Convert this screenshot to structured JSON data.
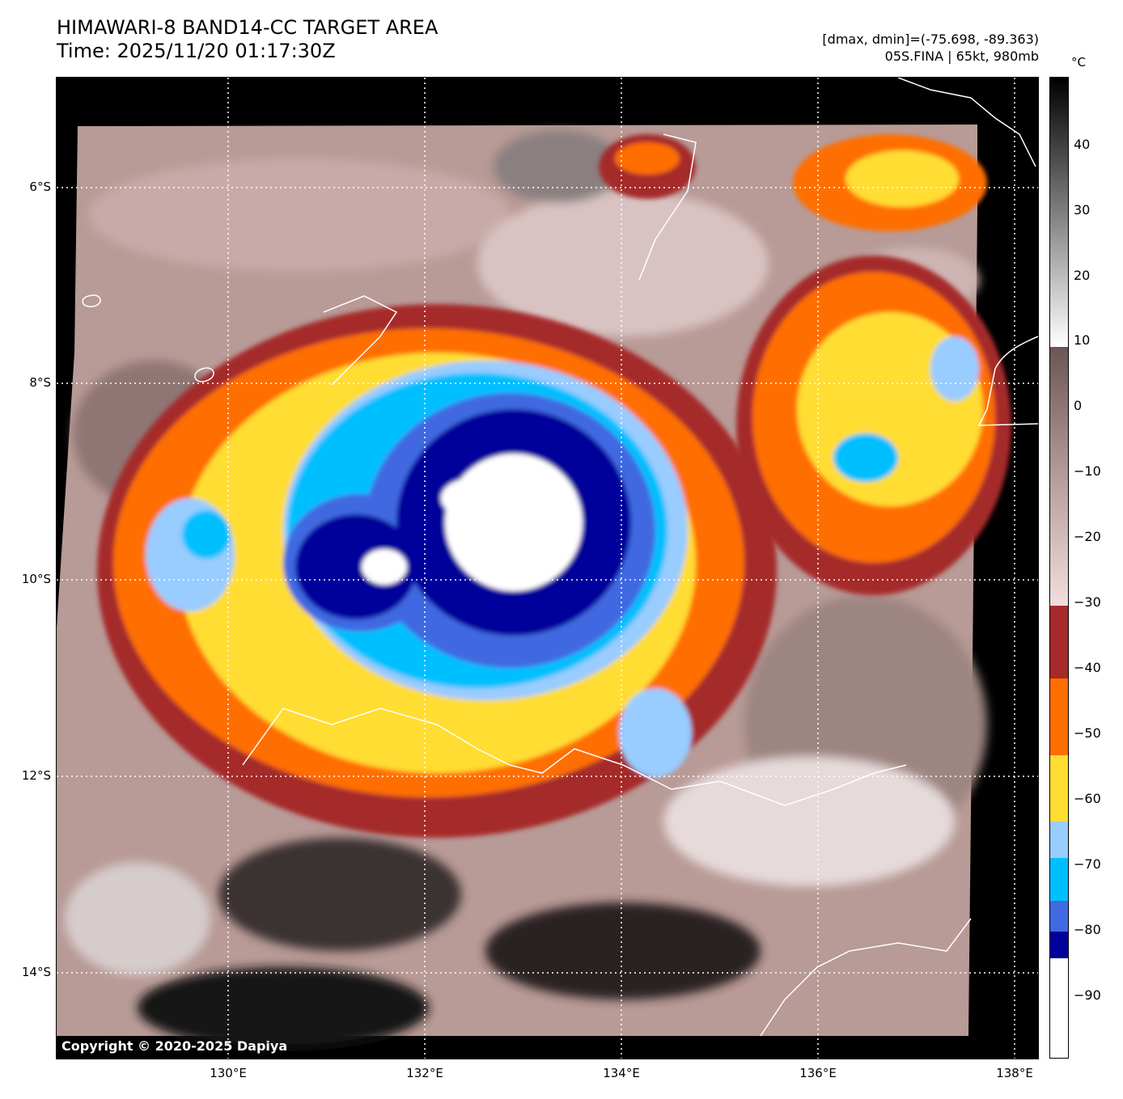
{
  "title": {
    "line1": "HIMAWARI-8 BAND14-CC TARGET AREA",
    "line2": "Time: 2025/11/20 01:17:30Z"
  },
  "info": {
    "line1": "[dmax, dmin]=(-75.698, -89.363)",
    "line2": "05S.FINA | 65kt, 980mb"
  },
  "axes": {
    "lat_labels": [
      "6°S",
      "8°S",
      "10°S",
      "12°S",
      "14°S"
    ],
    "lon_labels": [
      "130°E",
      "132°E",
      "134°E",
      "136°E",
      "138°E"
    ]
  },
  "colorbar": {
    "unit": "°C",
    "ticks": [
      "40",
      "30",
      "20",
      "10",
      "0",
      "−10",
      "−20",
      "−30",
      "−40",
      "−50",
      "−60",
      "−70",
      "−80",
      "−90"
    ],
    "colors": {
      "band_minus30_minus40": "#a52a2a",
      "band_minus40_minus50": "#ff6e00",
      "band_minus50_minus60": "#ffdd33",
      "band_minus60_minus65": "#99ccff",
      "band_minus65_minus75": "#00bfff",
      "band_minus75_minus80": "#4169e1",
      "band_minus80_minus85": "#00009a",
      "band_below_minus85": "#ffffff"
    }
  },
  "copyright": "Copyright © 2020-2025 Dapiya"
}
